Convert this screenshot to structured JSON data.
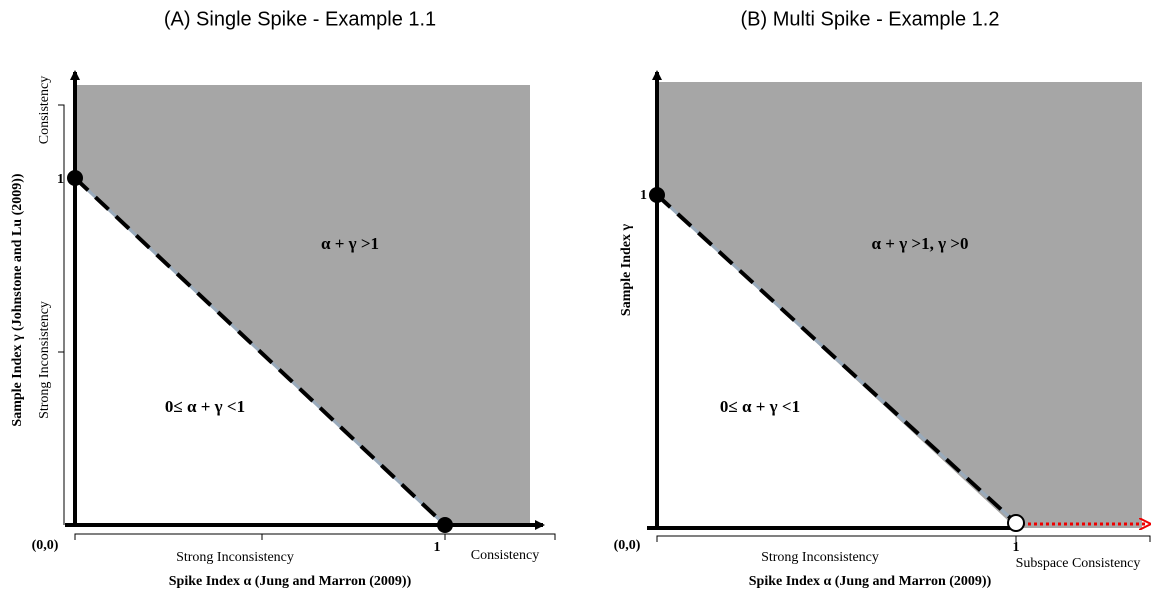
{
  "panels": [
    {
      "title": "(A) Single Spike - Example 1.1",
      "region_upper": "α + γ >1",
      "region_lower": "0≤ α + γ <1",
      "origin_label": "(0,0)",
      "y_tick_label": "1",
      "x_tick_label": "1",
      "y_axis_label": "Sample Index  γ (Johnstone and Lu (2009))",
      "x_axis_label": "Spike Index α (Jung and Marron (2009))",
      "y_ranges": [
        "Consistency",
        "Strong  Inconsistency"
      ],
      "x_ranges": [
        "Strong  Inconsistency",
        "Consistency"
      ]
    },
    {
      "title": "(B) Multi Spike - Example 1.2",
      "region_upper": "α + γ >1, γ >0",
      "region_lower": "0≤ α + γ <1",
      "origin_label": "(0,0)",
      "y_tick_label": "1",
      "x_tick_label": "1",
      "y_axis_label": "Sample Index γ",
      "x_axis_label": "Spike Index α (Jung and Marron (2009))",
      "x_ranges": [
        "Strong  Inconsistency",
        "Subspace Consistency"
      ]
    }
  ]
}
